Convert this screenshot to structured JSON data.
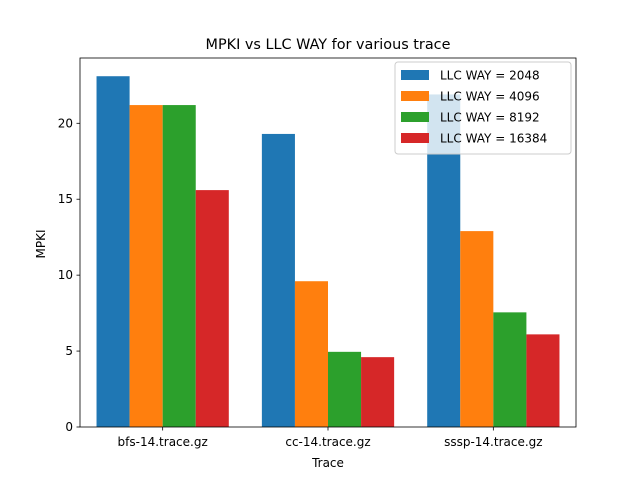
{
  "chart_data": {
    "type": "bar",
    "title": "MPKI vs LLC WAY for various trace",
    "xlabel": "Trace",
    "ylabel": "MPKI",
    "categories": [
      "bfs-14.trace.gz",
      "cc-14.trace.gz",
      "sssp-14.trace.gz"
    ],
    "series": [
      {
        "name": "LLC WAY = 2048",
        "color": "#1f77b4",
        "values": [
          23.1,
          19.3,
          21.9
        ]
      },
      {
        "name": "LLC WAY = 4096",
        "color": "#ff7f0e",
        "values": [
          21.2,
          9.6,
          12.9
        ]
      },
      {
        "name": "LLC WAY = 8192",
        "color": "#2ca02c",
        "values": [
          21.2,
          4.95,
          7.55
        ]
      },
      {
        "name": "LLC WAY = 16384",
        "color": "#d62728",
        "values": [
          15.6,
          4.6,
          6.1
        ]
      }
    ],
    "ylim": [
      0,
      24.3
    ],
    "yticks": [
      0,
      5,
      10,
      15,
      20
    ],
    "grid": false,
    "legend_position": "top-right"
  }
}
